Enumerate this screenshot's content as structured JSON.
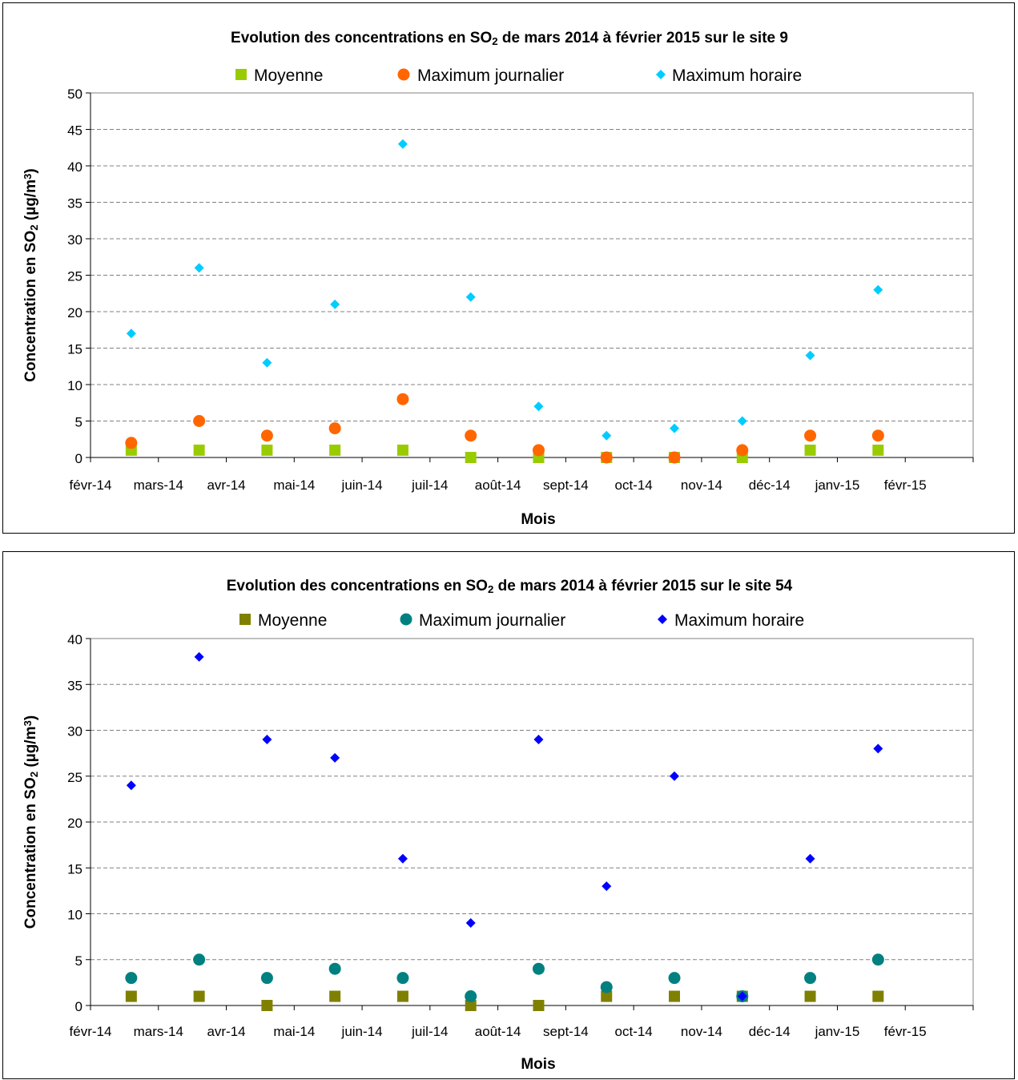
{
  "chart_data": [
    {
      "type": "scatter",
      "title_parts": [
        "Evolution des concentrations en SO",
        "2",
        " de mars 2014 à février 2015 sur le site 9"
      ],
      "ylabel_parts": [
        "Concentration en SO",
        "2",
        " (µg/m",
        "3",
        ")"
      ],
      "xlabel": "Mois",
      "x_ticks": [
        "févr-14",
        "mars-14",
        "avr-14",
        "mai-14",
        "juin-14",
        "juil-14",
        "août-14",
        "sept-14",
        "oct-14",
        "nov-14",
        "déc-14",
        "janv-15",
        "févr-15"
      ],
      "ylim": [
        0,
        50
      ],
      "y_ticks": [
        "0",
        "5",
        "10",
        "15",
        "20",
        "25",
        "30",
        "35",
        "40",
        "45",
        "50"
      ],
      "grid": "horizontal dashed",
      "legend_position": "top",
      "x_positions": [
        0.6,
        1.6,
        2.6,
        3.6,
        4.6,
        5.6,
        6.6,
        7.6,
        8.6,
        9.6,
        10.6,
        11.6
      ],
      "series": [
        {
          "name": "Moyenne",
          "marker": "square",
          "color": "#99cc00",
          "values": [
            1,
            1,
            1,
            1,
            1,
            0,
            0,
            0,
            0,
            0,
            1,
            1
          ]
        },
        {
          "name": "Maximum journalier",
          "marker": "circle",
          "color": "#ff6600",
          "values": [
            2,
            5,
            3,
            4,
            8,
            3,
            1,
            0,
            0,
            1,
            3,
            3
          ]
        },
        {
          "name": "Maximum horaire",
          "marker": "diamond",
          "color": "#00ccff",
          "values": [
            17,
            26,
            13,
            21,
            43,
            22,
            7,
            3,
            4,
            5,
            14,
            23
          ]
        }
      ]
    },
    {
      "type": "scatter",
      "title_parts": [
        "Evolution des concentrations en SO",
        "2",
        " de mars 2014 à février 2015 sur le site 54"
      ],
      "ylabel_parts": [
        "Concentration en SO",
        "2",
        " (µg/m",
        "3",
        ")"
      ],
      "xlabel": "Mois",
      "x_ticks": [
        "févr-14",
        "mars-14",
        "avr-14",
        "mai-14",
        "juin-14",
        "juil-14",
        "août-14",
        "sept-14",
        "oct-14",
        "nov-14",
        "déc-14",
        "janv-15",
        "févr-15"
      ],
      "ylim": [
        0,
        40
      ],
      "y_ticks": [
        "0",
        "5",
        "10",
        "15",
        "20",
        "25",
        "30",
        "35",
        "40"
      ],
      "grid": "horizontal dashed",
      "legend_position": "top",
      "x_positions": [
        0.6,
        1.6,
        2.6,
        3.6,
        4.6,
        5.6,
        6.6,
        7.6,
        8.6,
        9.6,
        10.6,
        11.6
      ],
      "series": [
        {
          "name": "Moyenne",
          "marker": "square",
          "color": "#808000",
          "values": [
            1,
            1,
            0,
            1,
            1,
            0,
            0,
            1,
            1,
            1,
            1,
            1
          ]
        },
        {
          "name": "Maximum journalier",
          "marker": "circle",
          "color": "#008080",
          "values": [
            3,
            5,
            3,
            4,
            3,
            1,
            4,
            2,
            3,
            1,
            3,
            5
          ]
        },
        {
          "name": "Maximum horaire",
          "marker": "diamond",
          "color": "#0000ff",
          "values": [
            24,
            38,
            29,
            27,
            16,
            9,
            29,
            13,
            25,
            1,
            16,
            28
          ]
        }
      ]
    }
  ]
}
